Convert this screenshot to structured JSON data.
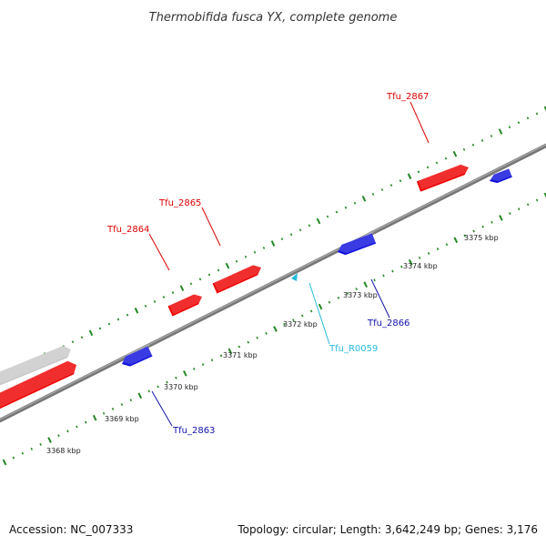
{
  "title": "Thermobifida fusca YX, complete genome",
  "footer": {
    "accession": "Accession: NC_007333",
    "summary": "Topology: circular; Length: 3,642,249 bp; Genes: 3,176"
  },
  "colors": {
    "forward_gene": "#ee0000",
    "reverse_gene": "#1111dd",
    "rna_gene": "#22bbdd",
    "other_feature": "#c8c8c8",
    "backbone": "#777777",
    "ticks": "#228822"
  },
  "scale_labels": [
    {
      "text": "3368 kbp"
    },
    {
      "text": "3369 kbp"
    },
    {
      "text": "3370 kbp"
    },
    {
      "text": "3371 kbp"
    },
    {
      "text": "3372 kbp"
    },
    {
      "text": "3373 kbp"
    },
    {
      "text": "3374 kbp"
    },
    {
      "text": "3375 kbp"
    }
  ],
  "gene_labels": [
    {
      "text": "Tfu_2867",
      "strand": "forward"
    },
    {
      "text": "Tfu_2865",
      "strand": "forward"
    },
    {
      "text": "Tfu_2864",
      "strand": "forward"
    },
    {
      "text": "Tfu_2866",
      "strand": "reverse"
    },
    {
      "text": "Tfu_R0059",
      "strand": "rna"
    },
    {
      "text": "Tfu_2863",
      "strand": "reverse"
    }
  ]
}
